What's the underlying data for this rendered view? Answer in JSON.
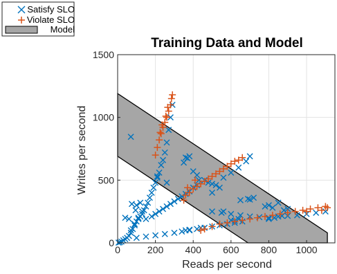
{
  "chart_data": {
    "type": "scatter",
    "title": "Training Data and Model",
    "xlabel": "Reads per second",
    "ylabel": "Writes per second",
    "xlim": [
      0,
      1150
    ],
    "ylim": [
      0,
      1500
    ],
    "xticks": [
      0,
      200,
      400,
      600,
      800,
      1000
    ],
    "yticks": [
      0,
      500,
      1000,
      1500
    ],
    "grid": true,
    "legend_position": "top-left-outside",
    "series": [
      {
        "name": "Satisfy SLO",
        "marker": "x",
        "color": "#0072BD",
        "points": [
          [
            5,
            2
          ],
          [
            12,
            5
          ],
          [
            20,
            10
          ],
          [
            30,
            20
          ],
          [
            40,
            30
          ],
          [
            50,
            40
          ],
          [
            60,
            55
          ],
          [
            70,
            80
          ],
          [
            80,
            110
          ],
          [
            90,
            140
          ],
          [
            100,
            170
          ],
          [
            110,
            190
          ],
          [
            120,
            210
          ],
          [
            130,
            230
          ],
          [
            140,
            260
          ],
          [
            150,
            290
          ],
          [
            160,
            320
          ],
          [
            170,
            360
          ],
          [
            180,
            400
          ],
          [
            190,
            440
          ],
          [
            200,
            480
          ],
          [
            210,
            530
          ],
          [
            220,
            560
          ],
          [
            230,
            620
          ],
          [
            240,
            660
          ],
          [
            250,
            720
          ],
          [
            260,
            800
          ],
          [
            270,
            900
          ],
          [
            280,
            1000
          ],
          [
            290,
            1100
          ],
          [
            70,
            100
          ],
          [
            90,
            150
          ],
          [
            110,
            200
          ],
          [
            130,
            250
          ],
          [
            60,
            190
          ],
          [
            75,
            310
          ],
          [
            100,
            300
          ],
          [
            95,
            260
          ],
          [
            120,
            320
          ],
          [
            40,
            200
          ],
          [
            150,
            190
          ],
          [
            180,
            210
          ],
          [
            200,
            230
          ],
          [
            220,
            250
          ],
          [
            240,
            270
          ],
          [
            260,
            290
          ],
          [
            280,
            310
          ],
          [
            300,
            330
          ],
          [
            320,
            350
          ],
          [
            340,
            370
          ],
          [
            360,
            390
          ],
          [
            380,
            410
          ],
          [
            400,
            440
          ],
          [
            420,
            460
          ],
          [
            100,
            40
          ],
          [
            150,
            50
          ],
          [
            200,
            60
          ],
          [
            250,
            70
          ],
          [
            300,
            80
          ],
          [
            340,
            90
          ],
          [
            380,
            100
          ],
          [
            420,
            110
          ],
          [
            460,
            120
          ],
          [
            500,
            130
          ],
          [
            540,
            140
          ],
          [
            580,
            150
          ],
          [
            620,
            160
          ],
          [
            660,
            170
          ],
          [
            70,
            845
          ],
          [
            210,
            520
          ],
          [
            260,
            480
          ],
          [
            350,
            640
          ],
          [
            360,
            680
          ],
          [
            370,
            675
          ],
          [
            380,
            690
          ],
          [
            400,
            570
          ],
          [
            420,
            540
          ],
          [
            430,
            500
          ],
          [
            460,
            500
          ],
          [
            480,
            480
          ],
          [
            500,
            470
          ],
          [
            520,
            460
          ],
          [
            540,
            440
          ],
          [
            500,
            400
          ],
          [
            560,
            520
          ],
          [
            600,
            560
          ],
          [
            640,
            600
          ],
          [
            680,
            650
          ],
          [
            700,
            690
          ],
          [
            690,
            350
          ],
          [
            700,
            345
          ],
          [
            720,
            360
          ],
          [
            650,
            340
          ],
          [
            500,
            250
          ],
          [
            550,
            240
          ],
          [
            560,
            250
          ],
          [
            600,
            230
          ],
          [
            650,
            220
          ],
          [
            700,
            210
          ],
          [
            750,
            205
          ],
          [
            800,
            200
          ],
          [
            850,
            210
          ],
          [
            900,
            215
          ],
          [
            950,
            220
          ],
          [
            1000,
            230
          ],
          [
            1050,
            240
          ],
          [
            1100,
            250
          ],
          [
            780,
            290
          ],
          [
            800,
            300
          ],
          [
            820,
            280
          ],
          [
            850,
            320
          ],
          [
            880,
            260
          ],
          [
            900,
            270
          ],
          [
            360,
            100
          ],
          [
            380,
            105
          ],
          [
            440,
            120
          ],
          [
            600,
            180
          ],
          [
            620,
            175
          ],
          [
            640,
            190
          ],
          [
            800,
            190
          ],
          [
            830,
            200
          ],
          [
            870,
            215
          ]
        ]
      },
      {
        "name": "Violate SLO",
        "marker": "+",
        "color": "#D95319",
        "points": [
          [
            200,
            700
          ],
          [
            210,
            760
          ],
          [
            220,
            820
          ],
          [
            230,
            870
          ],
          [
            240,
            920
          ],
          [
            250,
            960
          ],
          [
            260,
            1000
          ],
          [
            270,
            1050
          ],
          [
            280,
            1100
          ],
          [
            285,
            1150
          ],
          [
            290,
            1180
          ],
          [
            225,
            880
          ],
          [
            235,
            940
          ],
          [
            255,
            1010
          ],
          [
            265,
            1080
          ],
          [
            360,
            380
          ],
          [
            380,
            400
          ],
          [
            400,
            430
          ],
          [
            420,
            450
          ],
          [
            440,
            470
          ],
          [
            460,
            490
          ],
          [
            480,
            510
          ],
          [
            500,
            530
          ],
          [
            520,
            550
          ],
          [
            540,
            570
          ],
          [
            560,
            590
          ],
          [
            580,
            610
          ],
          [
            600,
            630
          ],
          [
            620,
            650
          ],
          [
            640,
            660
          ],
          [
            660,
            680
          ],
          [
            350,
            340
          ],
          [
            370,
            440
          ],
          [
            410,
            500
          ],
          [
            440,
            100
          ],
          [
            460,
            110
          ],
          [
            500,
            130
          ],
          [
            540,
            150
          ],
          [
            580,
            160
          ],
          [
            620,
            170
          ],
          [
            660,
            180
          ],
          [
            700,
            190
          ],
          [
            740,
            200
          ],
          [
            780,
            210
          ],
          [
            820,
            220
          ],
          [
            860,
            230
          ],
          [
            900,
            240
          ],
          [
            940,
            250
          ],
          [
            980,
            260
          ],
          [
            1020,
            270
          ],
          [
            1060,
            280
          ],
          [
            1100,
            290
          ],
          [
            1110,
            280
          ],
          [
            1080,
            260
          ],
          [
            1000,
            250
          ]
        ]
      }
    ],
    "model_region": {
      "name": "Model",
      "fill": "#A6A6A6",
      "polygon": [
        [
          0,
          1190
        ],
        [
          0,
          690
        ],
        [
          690,
          0
        ],
        [
          1110,
          0
        ],
        [
          1110,
          80
        ]
      ]
    }
  }
}
